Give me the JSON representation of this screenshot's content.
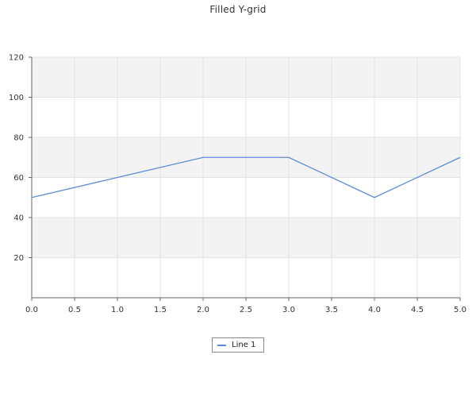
{
  "chart_data": {
    "type": "line",
    "title": "Filled Y-grid",
    "xlabel": "",
    "ylabel": "",
    "xlim": [
      0,
      5
    ],
    "ylim": [
      0,
      120
    ],
    "x_ticks": [
      "0.0",
      "0.5",
      "1.0",
      "1.5",
      "2.0",
      "2.5",
      "3.0",
      "3.5",
      "4.0",
      "4.5",
      "5.0"
    ],
    "y_ticks": [
      "20",
      "40",
      "60",
      "80",
      "100",
      "120"
    ],
    "grid": "x and y, alternating filled y bands",
    "legend_position": "bottom-center",
    "series": [
      {
        "name": "Line 1",
        "color": "#5b8bdc",
        "x": [
          0,
          1,
          2,
          3,
          4,
          5
        ],
        "y": [
          50,
          60,
          70,
          70,
          50,
          70
        ]
      }
    ],
    "band_color": "#f3f3f3",
    "grid_color": "#e3e3e3",
    "axis_color": "#666666"
  }
}
